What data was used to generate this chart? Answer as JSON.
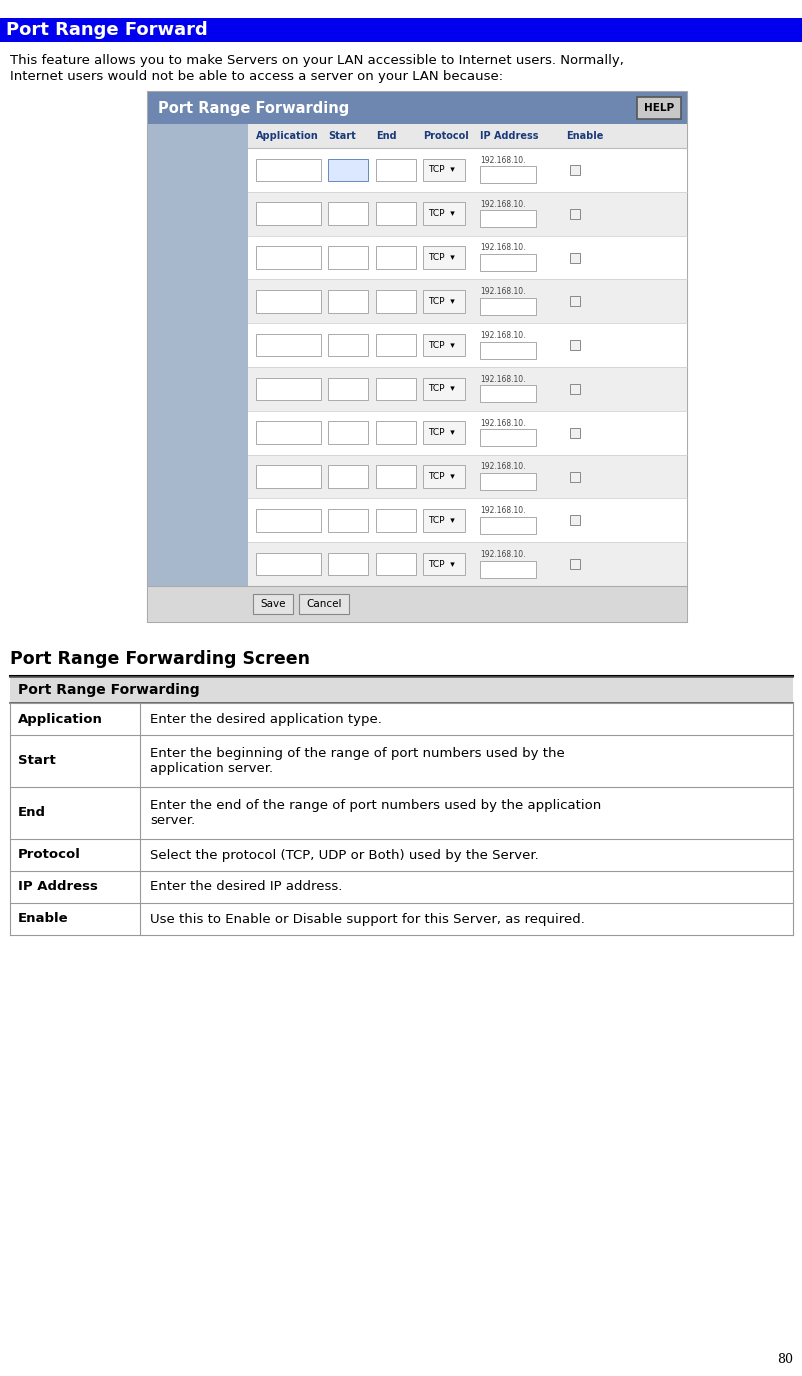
{
  "title": "Port Range Forward",
  "title_bg": "#0000EE",
  "title_color": "#FFFFFF",
  "page_number": "80",
  "intro_text1": "This feature allows you to make Servers on your LAN accessible to Internet users. Normally,",
  "intro_text2": "Internet users would not be able to access a server on your LAN because:",
  "router_ui": {
    "header_text": "Port Range Forwarding",
    "header_bg": "#6E87B0",
    "header_text_color": "#FFFFFF",
    "help_btn_text": "HELP",
    "col_headers": [
      "Application",
      "Start",
      "End",
      "Protocol",
      "IP Address",
      "Enable"
    ],
    "col_header_color": "#1a3a7a",
    "num_rows": 10,
    "ip_prefix": "192.168.10.",
    "left_panel_bg": "#A8B8CC",
    "save_btn": "Save",
    "cancel_btn": "Cancel",
    "footer_bg": "#D8D8D8"
  },
  "section_title": "Port Range Forwarding Screen",
  "table_header": "Port Range Forwarding",
  "table_header_bg": "#DCDCDC",
  "table_rows": [
    {
      "label": "Application",
      "desc": "Enter the desired application type.",
      "lines": 1
    },
    {
      "label": "Start",
      "desc": "Enter the beginning of the range of port numbers used by the\napplication server.",
      "lines": 2
    },
    {
      "label": "End",
      "desc": "Enter the end of the range of port numbers used by the application\nserver.",
      "lines": 2
    },
    {
      "label": "Protocol",
      "desc": "Select the protocol (TCP, UDP or Both) used by the Server.",
      "lines": 1
    },
    {
      "label": "IP Address",
      "desc": "Enter the desired IP address.",
      "lines": 1
    },
    {
      "label": "Enable",
      "desc": "Use this to Enable or Disable support for this Server, as required.",
      "lines": 1
    }
  ],
  "bg_color": "#FFFFFF"
}
